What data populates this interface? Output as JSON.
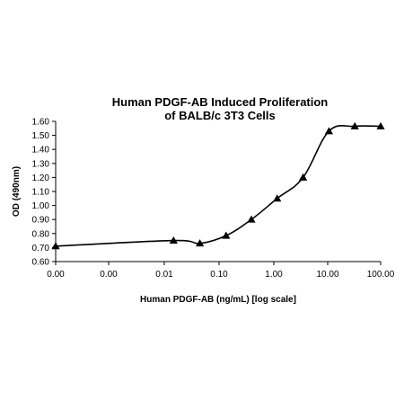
{
  "chart_data": {
    "type": "line",
    "title_lines": [
      "Human PDGF-AB Induced Proliferation",
      "of BALB/c 3T3 Cells"
    ],
    "xlabel": "Human PDGF-AB (ng/mL) [log scale]",
    "ylabel": "OD (490nm)",
    "x_scale": "log",
    "x_tick_labels": [
      "0.00",
      "0.00",
      "0.01",
      "0.10",
      "1.00",
      "10.00",
      "100.00"
    ],
    "x_tick_values": [
      1e-05,
      0.0001,
      0.001,
      0.01,
      0.1,
      1,
      10,
      100
    ],
    "y_tick_labels": [
      "0.60",
      "0.70",
      "0.80",
      "0.90",
      "1.00",
      "1.10",
      "1.20",
      "1.30",
      "1.40",
      "1.50",
      "1.60"
    ],
    "ylim": [
      0.6,
      1.6
    ],
    "xlim": [
      0.0001,
      100
    ],
    "grid": false,
    "legend": "none",
    "series": [
      {
        "marker": "triangle",
        "color": "#000000",
        "points": [
          {
            "x": 0.0001,
            "y": 0.71
          },
          {
            "x": 0.015,
            "y": 0.75
          },
          {
            "x": 0.046,
            "y": 0.73
          },
          {
            "x": 0.14,
            "y": 0.785
          },
          {
            "x": 0.41,
            "y": 0.9
          },
          {
            "x": 1.23,
            "y": 1.05
          },
          {
            "x": 3.7,
            "y": 1.2
          },
          {
            "x": 11.1,
            "y": 1.53
          },
          {
            "x": 33.3,
            "y": 1.565
          },
          {
            "x": 100,
            "y": 1.565
          }
        ]
      }
    ]
  }
}
